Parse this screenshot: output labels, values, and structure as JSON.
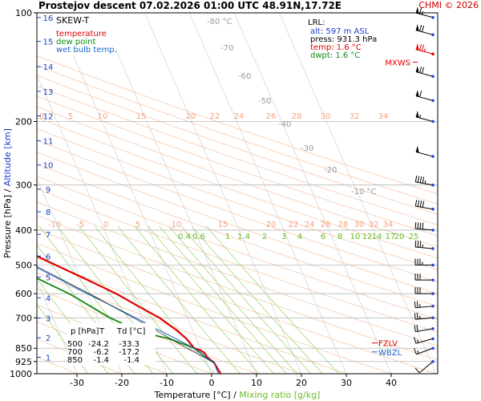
{
  "header": {
    "title": "Prostejov   descent   07.02.2026 01:00 UTC   48.91N,17.72E",
    "copyright": "CHMI © 2026"
  },
  "legend": {
    "heading": "SKEW-T",
    "items": [
      {
        "label": "temperature",
        "color": "#e00000"
      },
      {
        "label": "dew point",
        "color": "#118811"
      },
      {
        "label": "wet bulb temp.",
        "color": "#1a66cc"
      }
    ]
  },
  "lrl": {
    "heading": "LRL:",
    "lines": [
      {
        "text": "alt: 597 m ASL",
        "color": "#1a3cc8"
      },
      {
        "text": "press: 931.3 hPa",
        "color": "#000000"
      },
      {
        "text": "temp: 1.6 °C",
        "color": "#e00000"
      },
      {
        "text": "dwpt: 1.6 °C",
        "color": "#118811"
      }
    ]
  },
  "table": {
    "headers": [
      "p [hPa]",
      "T",
      "Td [°C]"
    ],
    "rows": [
      [
        "500",
        "-24.2",
        "-33.3"
      ],
      [
        "700",
        "-6.2",
        "-17.2"
      ],
      [
        "850",
        "-1.4",
        "-1.4"
      ]
    ]
  },
  "markers": {
    "mxws": {
      "label": "MXWS",
      "color": "#e00000"
    },
    "fzlv": {
      "label": "FZLV",
      "color": "#e00000"
    },
    "wbzl": {
      "label": "WBZL",
      "color": "#1a66cc"
    }
  },
  "chart_data": {
    "type": "line",
    "title": "Prostejov   descent   07.02.2026 01:00 UTC   48.91N,17.72E",
    "xlabel": "Temperature [°C]",
    "xlabel2": "Mixing ratio [g/kg]",
    "ylabel": "Pressure [hPa]",
    "ylabel2": "Altitude [km]",
    "xlim": [
      -35,
      50
    ],
    "ylim": [
      1000,
      100
    ],
    "y_scale": "log",
    "x_ticks": [
      "-30",
      "-20",
      "-10",
      "0",
      "10",
      "20",
      "30",
      "40"
    ],
    "pressure_ticks": [
      "100",
      "200",
      "300",
      "400",
      "500",
      "600",
      "700",
      "850",
      "925",
      "1000"
    ],
    "altitude_ticks": [
      {
        "km": "1",
        "p": 900
      },
      {
        "km": "2",
        "p": 795
      },
      {
        "km": "3",
        "p": 701
      },
      {
        "km": "4",
        "p": 616
      },
      {
        "km": "5",
        "p": 540
      },
      {
        "km": "6",
        "p": 472
      },
      {
        "km": "7",
        "p": 411
      },
      {
        "km": "8",
        "p": 356
      },
      {
        "km": "9",
        "p": 308
      },
      {
        "km": "10",
        "p": 264
      },
      {
        "km": "11",
        "p": 226
      },
      {
        "km": "12",
        "p": 193
      },
      {
        "km": "13",
        "p": 165
      },
      {
        "km": "14",
        "p": 141
      },
      {
        "km": "15",
        "p": 120
      },
      {
        "km": "16",
        "p": 103
      }
    ],
    "isotherm_labels": [
      "-80 °C",
      "-70",
      "-60",
      "-50",
      "-40",
      "-30",
      "-20",
      "-10 °C"
    ],
    "isotherm_values": [
      -80,
      -70,
      -60,
      -50,
      -40,
      -30,
      -20,
      -10
    ],
    "theta_labels_top": [
      "0",
      "5",
      "10",
      "15",
      "20",
      "22",
      "24",
      "26",
      "28",
      "30",
      "32",
      "34"
    ],
    "theta_labels_mid": [
      "-10",
      "-5",
      "0",
      "5",
      "10",
      "15",
      "20",
      "22",
      "24",
      "26",
      "28",
      "30",
      "32",
      "34"
    ],
    "mixing_ratio_labels": [
      "0.4",
      "0.6",
      "1",
      "1.4",
      "2",
      "3",
      "4",
      "6",
      "8",
      "10",
      "12",
      "14",
      "17",
      "20",
      "25"
    ],
    "series": [
      {
        "name": "temperature",
        "color": "#e00000",
        "points": [
          [
            1000,
            2.0
          ],
          [
            931.3,
            1.6
          ],
          [
            900,
            0.6
          ],
          [
            875,
            0.4
          ],
          [
            860,
            -0.3
          ],
          [
            850,
            -1.4
          ],
          [
            800,
            -2.2
          ],
          [
            760,
            -3.5
          ],
          [
            700,
            -6.2
          ],
          [
            650,
            -9.8
          ],
          [
            600,
            -13.5
          ],
          [
            550,
            -18.5
          ],
          [
            500,
            -24.2
          ],
          [
            470,
            -27.8
          ],
          [
            440,
            -31.0
          ],
          [
            400,
            -37.5
          ],
          [
            380,
            -40.5
          ],
          [
            350,
            -45.0
          ],
          [
            320,
            -49.0
          ],
          [
            300,
            -52.0
          ],
          [
            280,
            -55.5
          ],
          [
            262,
            -58.5
          ],
          [
            255,
            -59.0
          ],
          [
            250,
            -58.6
          ],
          [
            240,
            -57.5
          ],
          [
            220,
            -55.5
          ],
          [
            200,
            -54.0
          ],
          [
            190,
            -53.5
          ],
          [
            180,
            -52.8
          ],
          [
            170,
            -52.0
          ],
          [
            160,
            -51.5
          ],
          [
            150,
            -51.0
          ],
          [
            140,
            -50.0
          ],
          [
            130,
            -49.0
          ],
          [
            120,
            -47.5
          ],
          [
            110,
            -46.0
          ],
          [
            100,
            -44.5
          ]
        ]
      },
      {
        "name": "dew point",
        "color": "#118811",
        "points": [
          [
            931.3,
            1.6
          ],
          [
            900,
            0.2
          ],
          [
            875,
            -0.5
          ],
          [
            850,
            -1.4
          ],
          [
            800,
            -6.0
          ],
          [
            780,
            -9.5
          ],
          [
            760,
            -12.0
          ],
          [
            740,
            -14.0
          ],
          [
            720,
            -15.5
          ],
          [
            700,
            -17.2
          ],
          [
            680,
            -18.5
          ],
          [
            650,
            -20.5
          ],
          [
            620,
            -22.5
          ],
          [
            600,
            -24.0
          ],
          [
            570,
            -27.0
          ],
          [
            550,
            -29.0
          ],
          [
            530,
            -31.0
          ],
          [
            510,
            -32.5
          ],
          [
            500,
            -33.3
          ],
          [
            485,
            -37.0
          ],
          [
            470,
            -40.0
          ],
          [
            455,
            -54.0
          ],
          [
            452,
            -37.0
          ],
          [
            440,
            -43.0
          ],
          [
            430,
            -38.0
          ],
          [
            420,
            -42.0
          ],
          [
            410,
            -39.0
          ],
          [
            400,
            -40.0
          ],
          [
            390,
            -46.0
          ],
          [
            380,
            -56.0
          ],
          [
            370,
            -52.0
          ],
          [
            360,
            -60.0
          ],
          [
            350,
            -56.0
          ],
          [
            340,
            -57.0
          ],
          [
            320,
            -59.0
          ],
          [
            300,
            -62.0
          ],
          [
            280,
            -64.0
          ],
          [
            260,
            -68.0
          ],
          [
            240,
            -74.0
          ],
          [
            220,
            -78.0
          ],
          [
            200,
            -82.0
          ],
          [
            180,
            -85.0
          ],
          [
            160,
            -87.0
          ],
          [
            140,
            -89.0
          ],
          [
            120,
            -92.0
          ],
          [
            100,
            -95.0
          ]
        ]
      },
      {
        "name": "wet bulb temp.",
        "color": "#1a66cc",
        "points": [
          [
            1000,
            1.5
          ],
          [
            931.3,
            1.6
          ],
          [
            900,
            0.3
          ],
          [
            850,
            -1.4
          ],
          [
            800,
            -4.5
          ],
          [
            750,
            -8.0
          ],
          [
            700,
            -11.5
          ],
          [
            650,
            -15.5
          ],
          [
            600,
            -20.0
          ],
          [
            550,
            -24.5
          ],
          [
            500,
            -29.5
          ],
          [
            450,
            -35.0
          ],
          [
            400,
            -41.0
          ],
          [
            350,
            -47.0
          ],
          [
            300,
            -54.0
          ],
          [
            262,
            -60.0
          ],
          [
            250,
            -59.5
          ],
          [
            220,
            -56.5
          ],
          [
            200,
            -55.0
          ],
          [
            180,
            -53.8
          ],
          [
            160,
            -52.5
          ],
          [
            140,
            -51.0
          ],
          [
            120,
            -48.5
          ],
          [
            100,
            -45.5
          ]
        ]
      },
      {
        "name": "parcel",
        "color": "#000000",
        "points": [
          [
            931.3,
            1.6
          ],
          [
            850,
            -3.0
          ],
          [
            700,
            -12.0
          ],
          [
            600,
            -19.5
          ],
          [
            500,
            -29.0
          ],
          [
            400,
            -42.0
          ],
          [
            300,
            -59.0
          ]
        ]
      }
    ],
    "wind_barbs": [
      {
        "p": 925,
        "dir": 230,
        "kt": 12
      },
      {
        "p": 850,
        "dir": 250,
        "kt": 15
      },
      {
        "p": 800,
        "dir": 255,
        "kt": 18
      },
      {
        "p": 750,
        "dir": 260,
        "kt": 22
      },
      {
        "p": 700,
        "dir": 265,
        "kt": 25
      },
      {
        "p": 650,
        "dir": 265,
        "kt": 28
      },
      {
        "p": 600,
        "dir": 270,
        "kt": 30
      },
      {
        "p": 550,
        "dir": 270,
        "kt": 33
      },
      {
        "p": 500,
        "dir": 270,
        "kt": 35
      },
      {
        "p": 450,
        "dir": 275,
        "kt": 38
      },
      {
        "p": 400,
        "dir": 275,
        "kt": 40
      },
      {
        "p": 350,
        "dir": 280,
        "kt": 43
      },
      {
        "p": 300,
        "dir": 280,
        "kt": 45
      },
      {
        "p": 250,
        "dir": 285,
        "kt": 50
      },
      {
        "p": 200,
        "dir": 285,
        "kt": 55
      },
      {
        "p": 175,
        "dir": 285,
        "kt": 60
      },
      {
        "p": 150,
        "dir": 285,
        "kt": 70
      },
      {
        "p": 130,
        "dir": 285,
        "kt": 75
      },
      {
        "p": 115,
        "dir": 285,
        "kt": 70
      },
      {
        "p": 103,
        "dir": 285,
        "kt": 65
      }
    ],
    "levels": {
      "mxws_p": 137,
      "fzlv_p": 822,
      "wbzl_p": 870
    }
  }
}
